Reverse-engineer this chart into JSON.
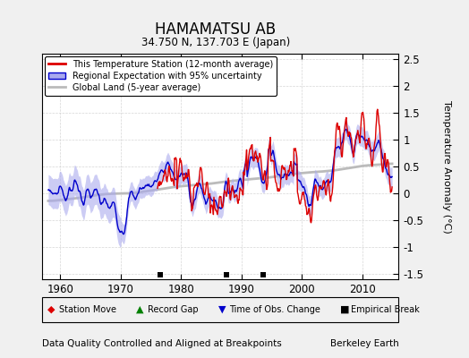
{
  "title": "HAMAMATSU AB",
  "subtitle": "34.750 N, 137.703 E (Japan)",
  "ylabel": "Temperature Anomaly (°C)",
  "xlabel_note": "Data Quality Controlled and Aligned at Breakpoints",
  "credit": "Berkeley Earth",
  "xlim": [
    1957,
    2016
  ],
  "ylim": [
    -1.6,
    2.6
  ],
  "yticks": [
    -1.5,
    -1.0,
    -0.5,
    0.0,
    0.5,
    1.0,
    1.5,
    2.0,
    2.5
  ],
  "xticks": [
    1960,
    1970,
    1980,
    1990,
    2000,
    2010
  ],
  "bg_color": "#f0f0f0",
  "plot_bg_color": "#ffffff",
  "red_color": "#dd0000",
  "blue_color": "#0000cc",
  "blue_fill_color": "#aaaaee",
  "gray_color": "#bbbbbb",
  "empirical_break_years": [
    1976.5,
    1987.5,
    1993.5
  ],
  "legend_entries": [
    "This Temperature Station (12-month average)",
    "Regional Expectation with 95% uncertainty",
    "Global Land (5-year average)"
  ]
}
